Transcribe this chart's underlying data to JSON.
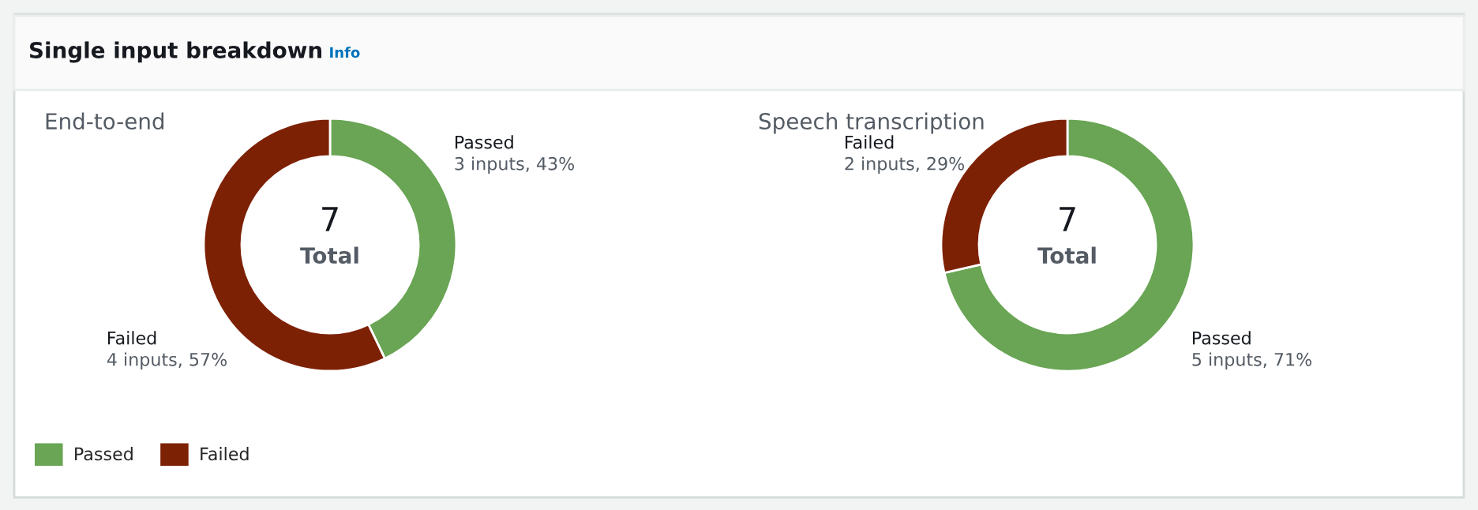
{
  "chart_data": [
    {
      "type": "donut",
      "title": "End-to-end",
      "categories": [
        "Passed",
        "Failed"
      ],
      "values": [
        3,
        4
      ],
      "colors": [
        "#69a554",
        "#7d2105"
      ],
      "value_labels": [
        "3 inputs, 43%",
        "4 inputs, 57%"
      ],
      "totals": [
        "7"
      ],
      "annotations": [
        "Single input breakdown",
        "Info",
        "Total"
      ],
      "legend": "bottom left"
    },
    {
      "type": "donut",
      "title": "Speech transcription",
      "categories": [
        "Passed",
        "Failed"
      ],
      "values": [
        5,
        2
      ],
      "colors": [
        "#69a554",
        "#7d2105"
      ],
      "value_labels": [
        "5 inputs, 71%",
        "2 inputs, 29%"
      ],
      "totals": [
        "7"
      ],
      "annotations": [
        "Total"
      ]
    }
  ]
}
